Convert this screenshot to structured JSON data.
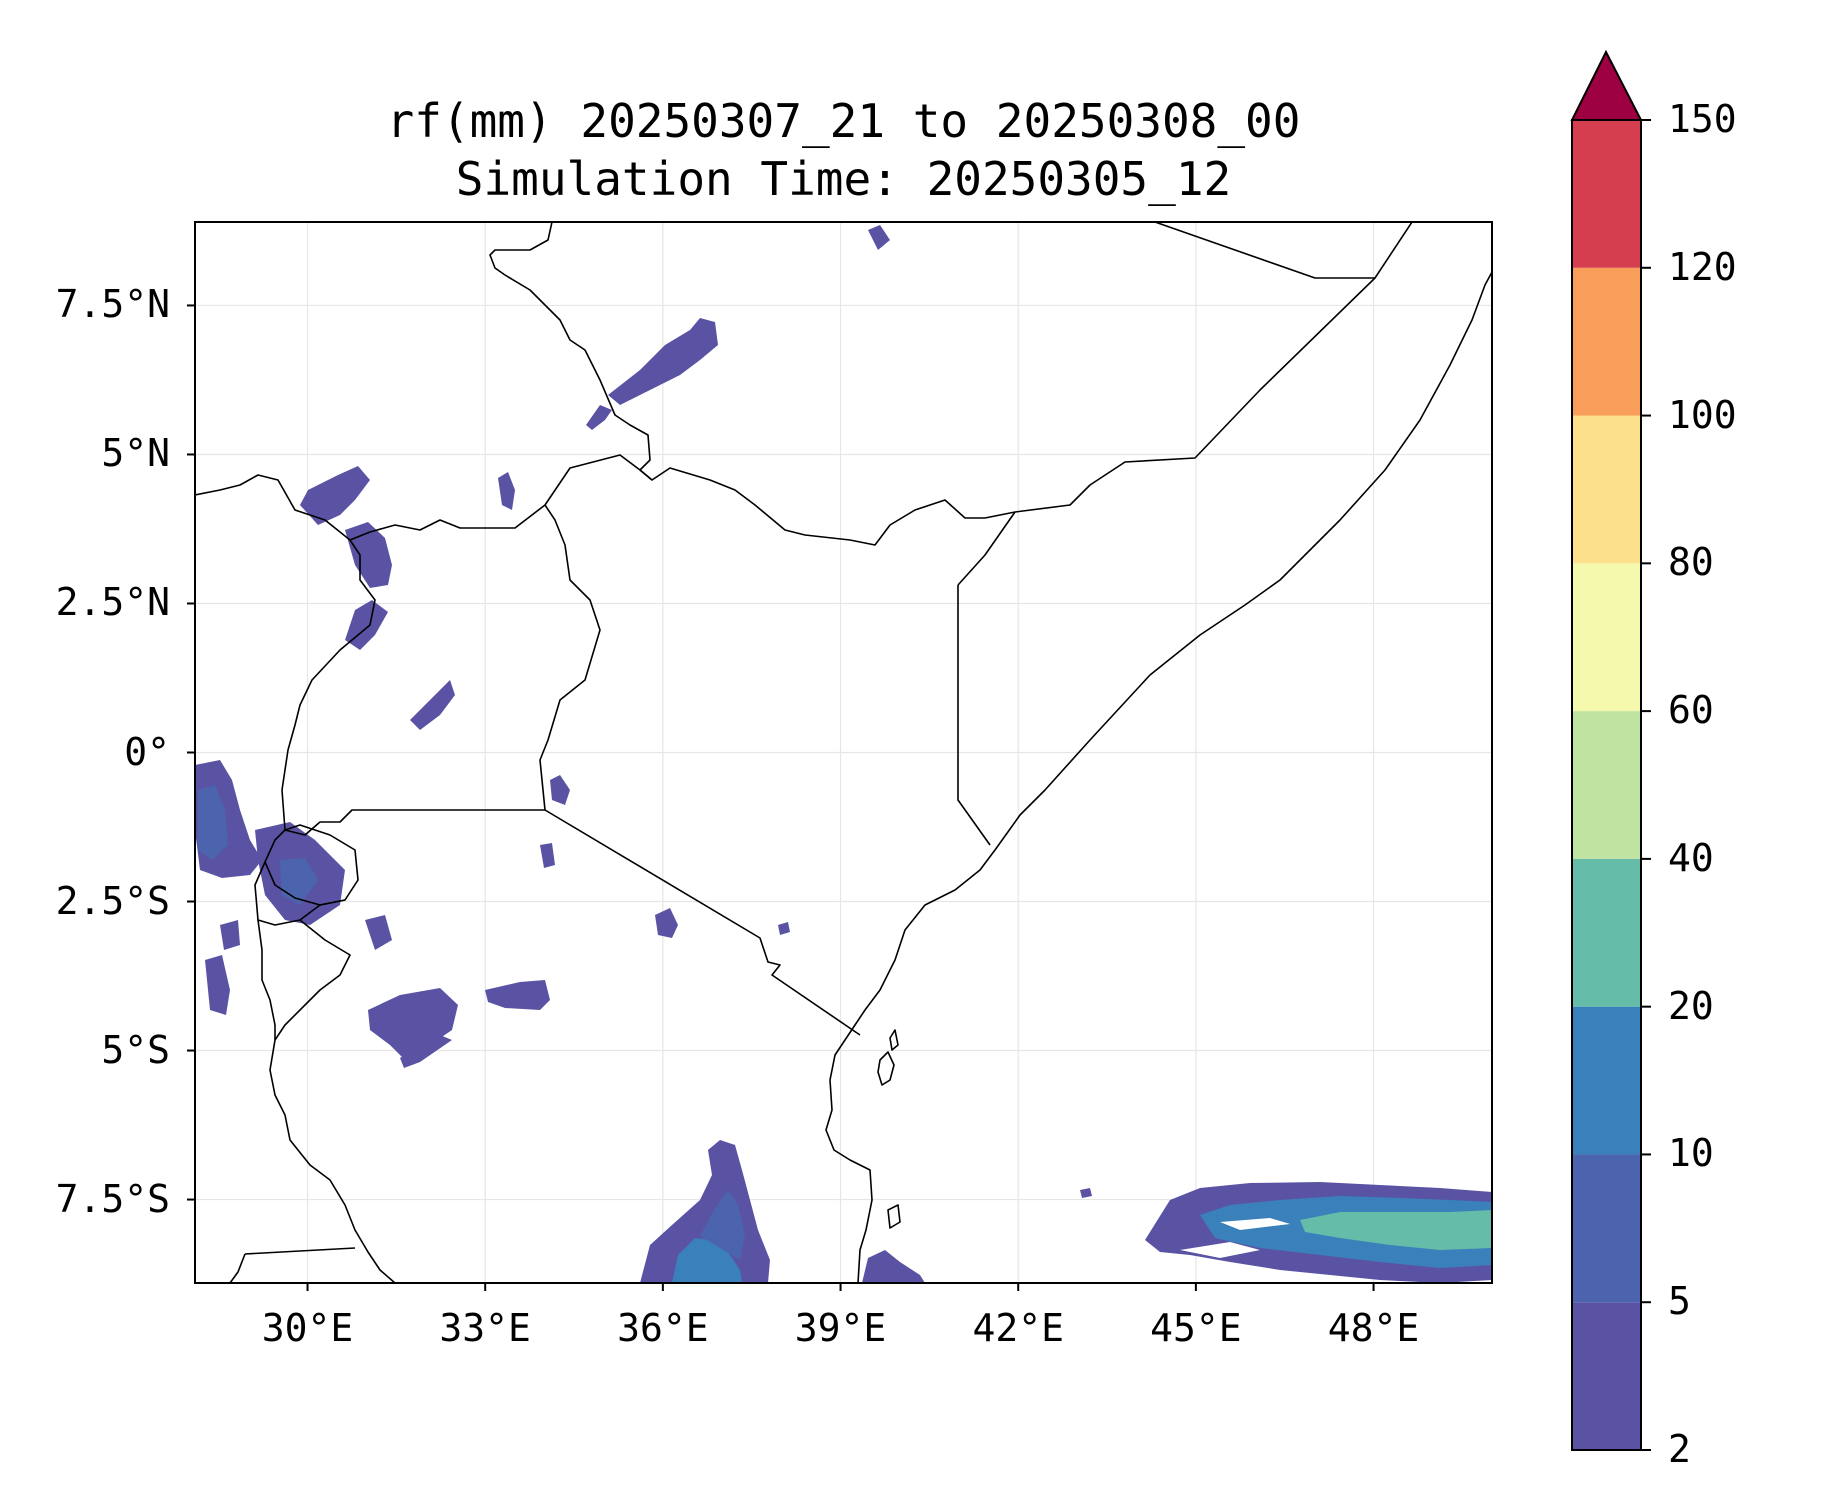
{
  "title": {
    "line1": "rf(mm) 20250307_21 to 20250308_00",
    "line2": "Simulation Time: 20250305_12"
  },
  "map": {
    "lon_range": [
      28.1,
      50
    ],
    "lat_range": [
      -8.9,
      8.9
    ],
    "lon_ticks": [
      {
        "value": 30,
        "label": "30°E"
      },
      {
        "value": 33,
        "label": "33°E"
      },
      {
        "value": 36,
        "label": "36°E"
      },
      {
        "value": 39,
        "label": "39°E"
      },
      {
        "value": 42,
        "label": "42°E"
      },
      {
        "value": 45,
        "label": "45°E"
      },
      {
        "value": 48,
        "label": "48°E"
      }
    ],
    "lat_ticks": [
      {
        "value": 7.5,
        "label": "7.5°N"
      },
      {
        "value": 5,
        "label": "5°N"
      },
      {
        "value": 2.5,
        "label": "2.5°N"
      },
      {
        "value": 0,
        "label": "0°"
      },
      {
        "value": -2.5,
        "label": "2.5°S"
      },
      {
        "value": -5,
        "label": "5°S"
      },
      {
        "value": -7.5,
        "label": "7.5°S"
      }
    ],
    "grid": true
  },
  "colorbar": {
    "levels": [
      "2",
      "5",
      "10",
      "20",
      "40",
      "60",
      "80",
      "100",
      "120",
      "150"
    ],
    "colors": [
      "#5a53a4",
      "#4c64ad",
      "#3a80ba",
      "#64bca9",
      "#bfe3a0",
      "#f4f9ad",
      "#fbdf8b",
      "#f99d5a",
      "#d53e4f"
    ],
    "extend_color": "#9e0142",
    "extend": "max"
  },
  "chart_data": {
    "type": "heatmap",
    "variable": "rf(mm)",
    "units": "mm",
    "levels": [
      2,
      5,
      10,
      20,
      40,
      60,
      80,
      100,
      120,
      150
    ],
    "regions": [
      {
        "lon": 36.5,
        "lat": 6.5,
        "max_level": 5
      },
      {
        "lon": 30.7,
        "lat": 3.7,
        "max_level": 5
      },
      {
        "lon": 33.3,
        "lat": 4.3,
        "max_level": 5
      },
      {
        "lon": 31.5,
        "lat": 1.0,
        "max_level": 5
      },
      {
        "lon": 28.6,
        "lat": -1.5,
        "max_level": 10
      },
      {
        "lon": 29.8,
        "lat": -2.5,
        "max_level": 10
      },
      {
        "lon": 32.2,
        "lat": -4.6,
        "max_level": 5
      },
      {
        "lon": 33.8,
        "lat": -4.0,
        "max_level": 5
      },
      {
        "lon": 34.2,
        "lat": -0.7,
        "max_level": 5
      },
      {
        "lon": 36.0,
        "lat": -2.8,
        "max_level": 5
      },
      {
        "lon": 36.5,
        "lat": -8.3,
        "max_level": 20
      },
      {
        "lon": 39.7,
        "lat": -8.7,
        "max_level": 5
      },
      {
        "lon": 47.5,
        "lat": -8.0,
        "max_level": 40
      }
    ]
  }
}
